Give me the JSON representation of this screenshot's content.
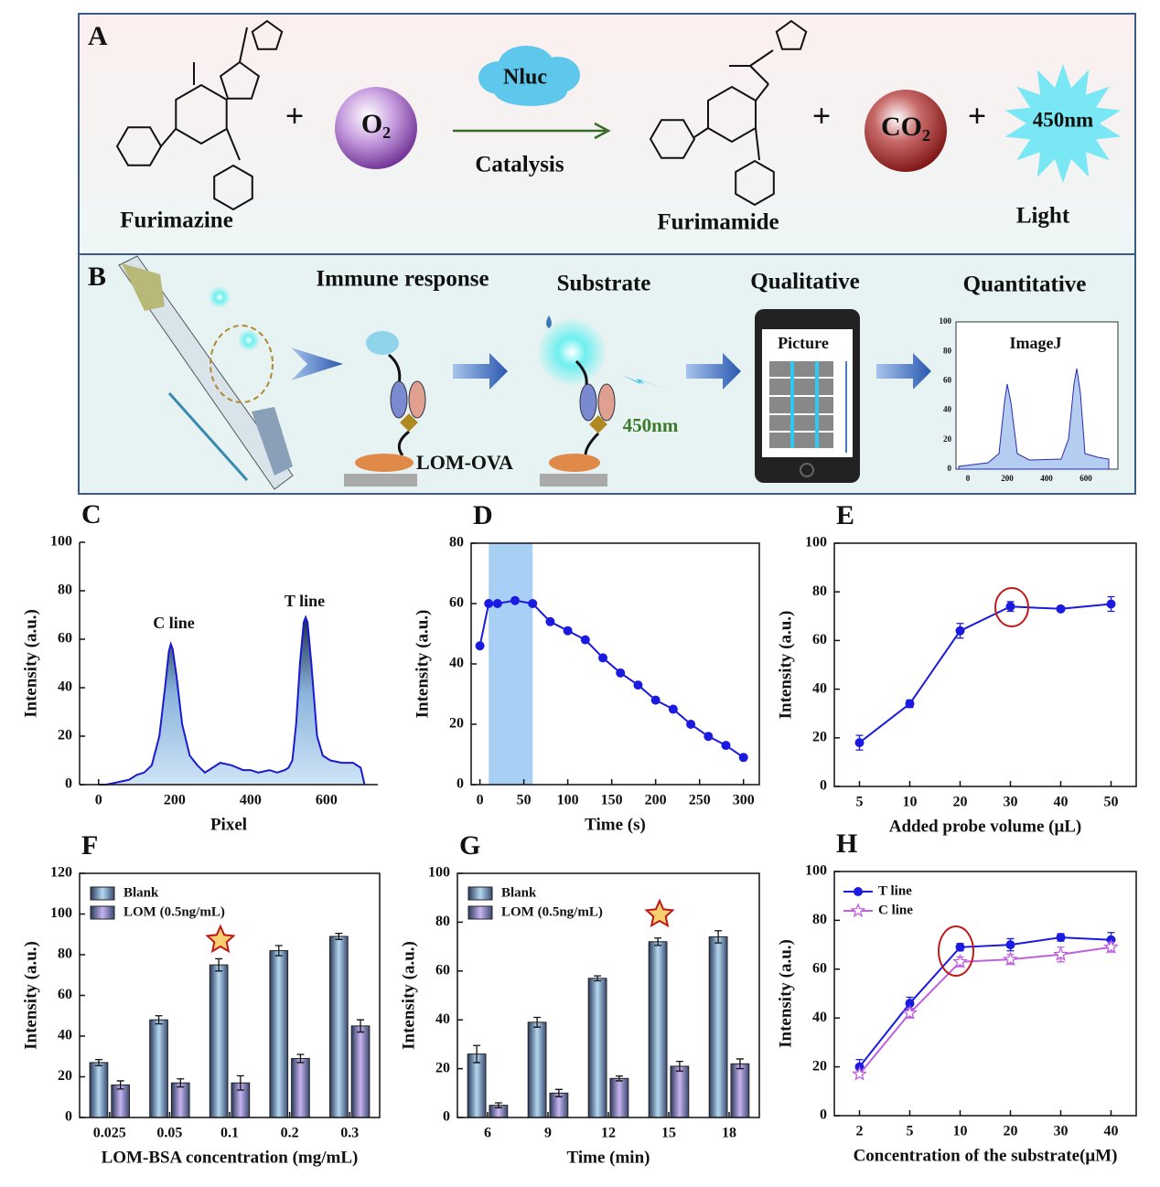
{
  "panel_a": {
    "label": "A",
    "reactant": "Furimazine",
    "plus": "+",
    "oxygen": "O₂",
    "enzyme": "Nluc",
    "process": "Catalysis",
    "product": "Furimamide",
    "carbon_dioxide": "CO₂",
    "emission": "450nm",
    "light": "Light"
  },
  "panel_b": {
    "label": "B",
    "step1": "Immune response",
    "step2": "Substrate",
    "step3": "Qualitative",
    "step4": "Quantitative",
    "antigen": "LOM-OVA",
    "emission": "450nm",
    "phone_label": "Picture",
    "software": "ImageJ",
    "mini_yticks": [
      0,
      20,
      40,
      60,
      80,
      100
    ],
    "mini_xticks": [
      0,
      200,
      400,
      600
    ]
  },
  "chart_data": [
    {
      "type": "area",
      "panel_label": "C",
      "xlabel": "Pixel",
      "ylabel": "Intensity (a.u.)",
      "annotations": [
        "C line",
        "T line"
      ],
      "xlim": [
        -50,
        735
      ],
      "xticks": [
        0,
        200,
        400,
        600
      ],
      "ylim": [
        0,
        100
      ],
      "yticks": [
        0,
        20,
        40,
        60,
        80,
        100
      ],
      "frame": false,
      "series": [
        {
          "color": "#1a1ad0",
          "x": [
            0,
            20,
            50,
            80,
            100,
            120,
            140,
            160,
            175,
            185,
            190,
            195,
            205,
            220,
            240,
            260,
            280,
            300,
            320,
            350,
            380,
            400,
            420,
            450,
            470,
            490,
            500,
            510,
            520,
            530,
            540,
            545,
            550,
            560,
            575,
            590,
            610,
            640,
            670,
            690,
            700
          ],
          "values": [
            0,
            0,
            1,
            2,
            4,
            5,
            8,
            20,
            40,
            55,
            58,
            56,
            45,
            25,
            12,
            8,
            5,
            7,
            9,
            8,
            6,
            6,
            5,
            6,
            5,
            6,
            7,
            10,
            25,
            50,
            67,
            69,
            67,
            50,
            20,
            12,
            10,
            9,
            9,
            7,
            0
          ]
        }
      ]
    },
    {
      "type": "line",
      "panel_label": "D",
      "xlabel": "Time (s)",
      "ylabel": "Intensity (a.u.)",
      "xlim": [
        -10,
        318
      ],
      "xticks": [
        0,
        50,
        100,
        150,
        200,
        250,
        300
      ],
      "ylim": [
        0,
        80
      ],
      "yticks": [
        0,
        20,
        40,
        60,
        80
      ],
      "shaded_x": [
        10,
        60
      ],
      "frame": true,
      "series": [
        {
          "color": "#1a1ae0",
          "marker": "circle",
          "x": [
            0,
            10,
            20,
            40,
            60,
            80,
            100,
            120,
            140,
            160,
            180,
            200,
            220,
            240,
            260,
            280,
            300
          ],
          "values": [
            46,
            60,
            60,
            61,
            60,
            54,
            51,
            48,
            42,
            37,
            33,
            28,
            25,
            20,
            16,
            13,
            9
          ]
        }
      ]
    },
    {
      "type": "line",
      "panel_label": "E",
      "xlabel": "Added probe volume (μL)",
      "ylabel": "Intensity (a.u.)",
      "categories": [
        "5",
        "10",
        "20",
        "30",
        "40",
        "50"
      ],
      "ylim": [
        0,
        100
      ],
      "yticks": [
        0,
        20,
        40,
        60,
        80,
        100
      ],
      "frame": true,
      "series": [
        {
          "color": "#1a1ae0",
          "marker": "circle",
          "values": [
            18,
            34,
            64,
            74,
            73,
            75
          ],
          "errors": [
            3,
            1.5,
            3,
            2,
            1,
            3
          ]
        }
      ]
    },
    {
      "type": "bar",
      "panel_label": "F",
      "xlabel": "LOM-BSA concentration (mg/mL)",
      "ylabel": "Intensity (a.u.)",
      "categories": [
        "0.025",
        "0.05",
        "0.1",
        "0.2",
        "0.3"
      ],
      "ylim": [
        0,
        120
      ],
      "yticks": [
        0,
        20,
        40,
        60,
        80,
        100,
        120
      ],
      "frame": true,
      "series": [
        {
          "name": "Blank",
          "color": "#b4d8f0",
          "values": [
            27,
            48,
            75,
            82,
            89
          ],
          "errors": [
            1.5,
            2,
            3,
            2.5,
            1.5
          ]
        },
        {
          "name": "LOM (0.5ng/mL)",
          "color": "#c8b4f0",
          "values": [
            16,
            17,
            17,
            29,
            45
          ],
          "errors": [
            2,
            2,
            3.5,
            2,
            3
          ]
        }
      ]
    },
    {
      "type": "bar",
      "panel_label": "G",
      "xlabel": "Time (min)",
      "ylabel": "Intensity (a.u.)",
      "categories": [
        "6",
        "9",
        "12",
        "15",
        "18"
      ],
      "ylim": [
        0,
        100
      ],
      "yticks": [
        0,
        20,
        40,
        60,
        80,
        100
      ],
      "frame": true,
      "series": [
        {
          "name": "Blank",
          "color": "#b4d8f0",
          "values": [
            26,
            39,
            57,
            72,
            74
          ],
          "errors": [
            3.5,
            2,
            1,
            1.5,
            2.5
          ]
        },
        {
          "name": "LOM (0.5ng/mL)",
          "color": "#c8b4f0",
          "values": [
            5,
            10,
            16,
            21,
            22
          ],
          "errors": [
            1,
            1.5,
            1,
            2,
            2
          ]
        }
      ]
    },
    {
      "type": "line",
      "panel_label": "H",
      "xlabel": "Concentration of the substrate(μM)",
      "ylabel": "Intensity (a.u.)",
      "categories": [
        "2",
        "5",
        "10",
        "20",
        "30",
        "40"
      ],
      "ylim": [
        0,
        100
      ],
      "yticks": [
        0,
        20,
        40,
        60,
        80,
        100
      ],
      "frame": true,
      "series": [
        {
          "name": "T line",
          "color": "#1a1ae0",
          "marker": "circle",
          "values": [
            20,
            46,
            69,
            70,
            73,
            72
          ],
          "errors": [
            3,
            2.5,
            1.5,
            2.5,
            1.5,
            3
          ]
        },
        {
          "name": "C line",
          "color": "#c060e0",
          "marker": "star",
          "values": [
            17,
            42,
            63,
            64,
            66,
            69
          ],
          "errors": [
            1,
            2,
            2,
            2,
            3,
            2
          ]
        }
      ]
    }
  ]
}
